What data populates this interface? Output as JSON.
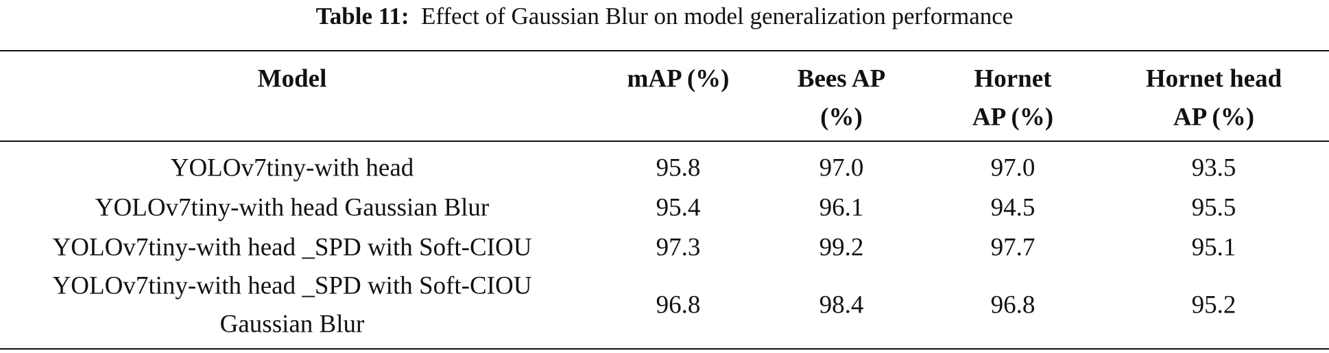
{
  "caption": {
    "label": "Table 11:",
    "text": "Effect of Gaussian Blur on model generalization performance"
  },
  "table": {
    "header": [
      [
        "Model"
      ],
      [
        "mAP (%)"
      ],
      [
        "Bees AP",
        "(%)"
      ],
      [
        "Hornet",
        "AP (%)"
      ],
      [
        "Hornet head",
        "AP (%)"
      ]
    ],
    "rows": [
      {
        "model": [
          "YOLOv7tiny-with head"
        ],
        "values": [
          "95.8",
          "97.0",
          "97.0",
          "93.5"
        ]
      },
      {
        "model": [
          "YOLOv7tiny-with head Gaussian Blur"
        ],
        "values": [
          "95.4",
          "96.1",
          "94.5",
          "95.5"
        ]
      },
      {
        "model": [
          "YOLOv7tiny-with head _SPD with Soft-CIOU"
        ],
        "values": [
          "97.3",
          "99.2",
          "97.7",
          "95.1"
        ]
      },
      {
        "model": [
          "YOLOv7tiny-with head _SPD with Soft-CIOU",
          "Gaussian Blur"
        ],
        "values": [
          "96.8",
          "98.4",
          "96.8",
          "95.2"
        ]
      }
    ]
  }
}
